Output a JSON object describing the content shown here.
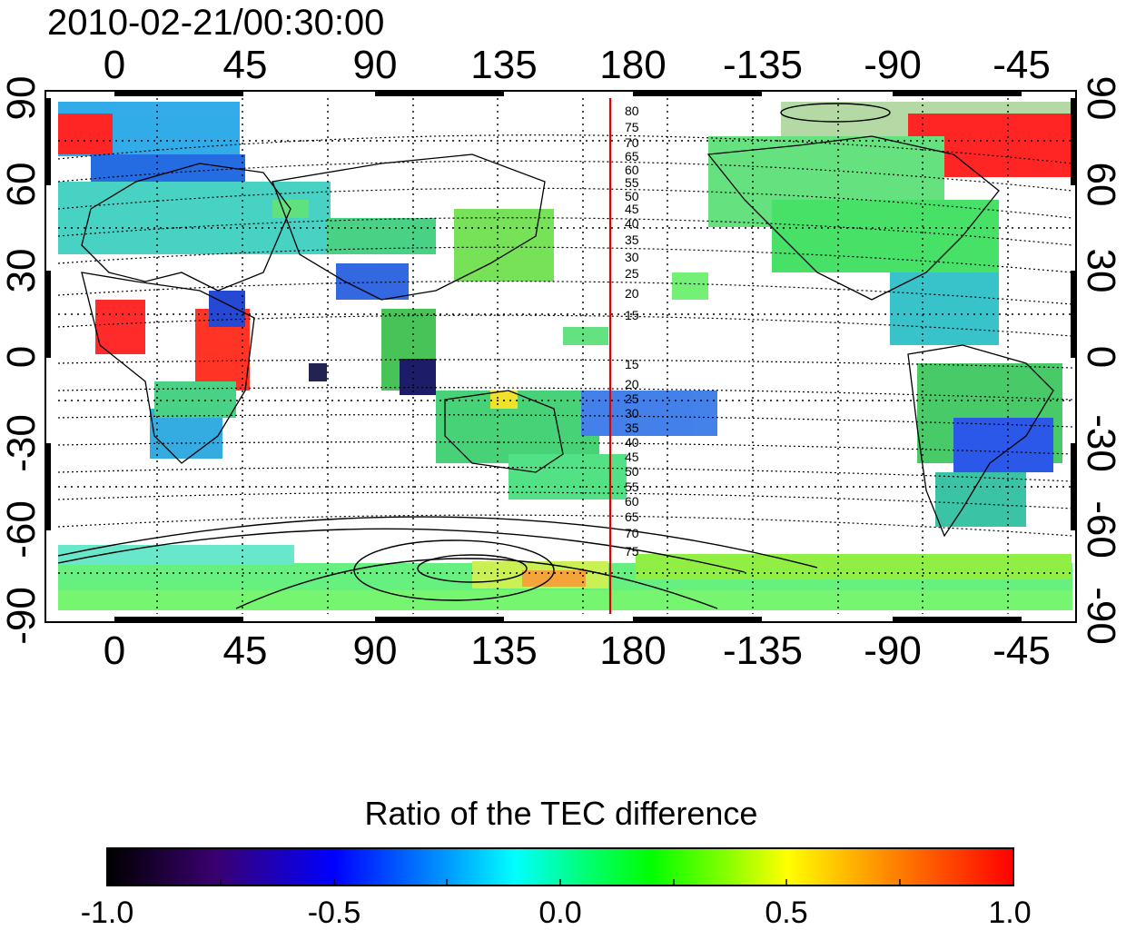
{
  "map": {
    "title": "2010-02-21/00:30:00",
    "top_axis_ticks": [
      "0",
      "45",
      "90",
      "135",
      "180",
      "-135",
      "-90",
      "-45"
    ],
    "bottom_axis_ticks": [
      "0",
      "45",
      "90",
      "135",
      "180",
      "-135",
      "-90",
      "-45"
    ],
    "left_axis_ticks": [
      "90",
      "60",
      "30",
      "0",
      "-30",
      "-60",
      "-90"
    ],
    "right_axis_ticks": [
      "90",
      "60",
      "30",
      "0",
      "-30",
      "-60",
      "-90"
    ],
    "contour_labels_north": [
      "80",
      "75",
      "70",
      "65",
      "60",
      "55",
      "50",
      "45",
      "40",
      "35",
      "30",
      "25",
      "20",
      "15"
    ],
    "contour_labels_south": [
      "15",
      "20",
      "25",
      "30",
      "35",
      "40",
      "45",
      "50",
      "55",
      "60",
      "65",
      "70",
      "75"
    ],
    "terminator_color": "#e00000"
  },
  "colorbar": {
    "title": "Ratio of the TEC difference",
    "min": -1.0,
    "max": 1.0,
    "ticks": [
      "-1.0",
      "-0.5",
      "0.0",
      "0.5",
      "1.0"
    ],
    "colormap": [
      "#000000",
      "#3a0070",
      "#0000ff",
      "#00a0ff",
      "#00ffff",
      "#00ff80",
      "#00ff00",
      "#80ff00",
      "#ffff00",
      "#ff8000",
      "#ff0000"
    ]
  }
}
